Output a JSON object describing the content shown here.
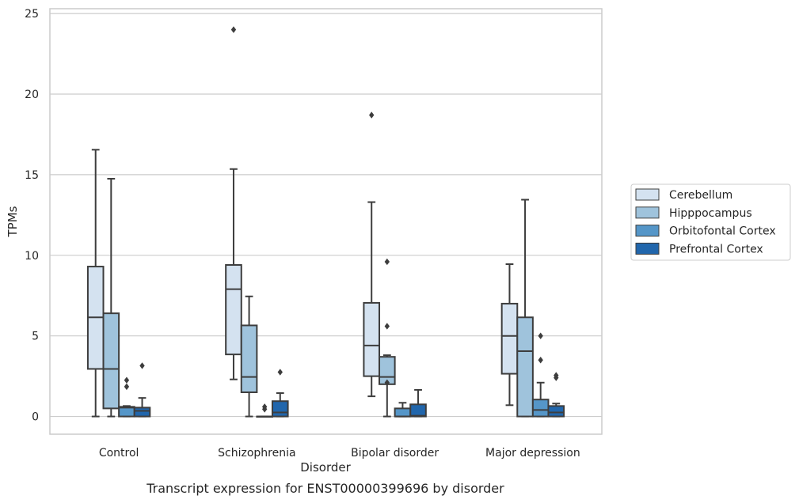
{
  "chart_data": {
    "type": "box",
    "caption": "Transcript expression for ENST00000399696 by disorder",
    "xlabel": "Disorder",
    "ylabel": "TPMs",
    "ylim": [
      -1.1,
      25.3
    ],
    "yticks": [
      0,
      5,
      10,
      15,
      20,
      25
    ],
    "grid": true,
    "legend_position": "right",
    "categories": [
      "Control",
      "Schizophrenia",
      "Bipolar disorder",
      "Major depression"
    ],
    "series": [
      {
        "name": "Cerebellum",
        "color": "#d4e2f0",
        "boxes": [
          {
            "whislo": 0,
            "q1": 2.95,
            "med": 6.15,
            "q3": 9.3,
            "whishi": 16.55,
            "fliers": []
          },
          {
            "whislo": 2.3,
            "q1": 3.85,
            "med": 7.9,
            "q3": 9.4,
            "whishi": 15.35,
            "fliers": [
              24.0
            ]
          },
          {
            "whislo": 1.25,
            "q1": 2.5,
            "med": 4.4,
            "q3": 7.05,
            "whishi": 13.3,
            "fliers": [
              18.7
            ]
          },
          {
            "whislo": 0.7,
            "q1": 2.65,
            "med": 5.0,
            "q3": 7.0,
            "whishi": 9.45,
            "fliers": []
          }
        ]
      },
      {
        "name": "Hipppocampus",
        "color": "#9fc3dc",
        "boxes": [
          {
            "whislo": 0,
            "q1": 0.5,
            "med": 2.95,
            "q3": 6.4,
            "whishi": 14.75,
            "fliers": []
          },
          {
            "whislo": 0,
            "q1": 1.5,
            "med": 2.45,
            "q3": 5.65,
            "whishi": 7.45,
            "fliers": []
          },
          {
            "whislo": 0,
            "q1": 2.0,
            "med": 2.45,
            "q3": 3.7,
            "whishi": 3.8,
            "fliers": [
              9.6,
              5.6,
              2.1
            ]
          },
          {
            "whislo": 0,
            "q1": 0,
            "med": 4.05,
            "q3": 6.15,
            "whishi": 13.45,
            "fliers": []
          }
        ]
      },
      {
        "name": "Orbitofontal Cortex",
        "color": "#5596c8",
        "boxes": [
          {
            "whislo": 0,
            "q1": 0,
            "med": 0.55,
            "q3": 0.6,
            "whishi": 0.65,
            "fliers": [
              2.25,
              1.85
            ]
          },
          {
            "whislo": 0,
            "q1": 0,
            "med": 0,
            "q3": 0,
            "whishi": 0,
            "fliers": [
              0.6,
              0.45
            ]
          },
          {
            "whislo": 0,
            "q1": 0,
            "med": 0,
            "q3": 0.5,
            "whishi": 0.85,
            "fliers": []
          },
          {
            "whislo": 0,
            "q1": 0,
            "med": 0.4,
            "q3": 1.05,
            "whishi": 2.1,
            "fliers": [
              5.0,
              3.5
            ]
          }
        ]
      },
      {
        "name": "Prefrontal Cortex",
        "color": "#2166ac",
        "boxes": [
          {
            "whislo": 0,
            "q1": 0,
            "med": 0.35,
            "q3": 0.55,
            "whishi": 1.15,
            "fliers": [
              3.15
            ]
          },
          {
            "whislo": 0,
            "q1": 0,
            "med": 0.25,
            "q3": 0.95,
            "whishi": 1.45,
            "fliers": [
              2.75
            ]
          },
          {
            "whislo": 0,
            "q1": 0,
            "med": 0.05,
            "q3": 0.75,
            "whishi": 1.65,
            "fliers": []
          },
          {
            "whislo": 0,
            "q1": 0,
            "med": 0.25,
            "q3": 0.65,
            "whishi": 0.8,
            "fliers": [
              2.55,
              2.4
            ]
          }
        ]
      }
    ]
  }
}
